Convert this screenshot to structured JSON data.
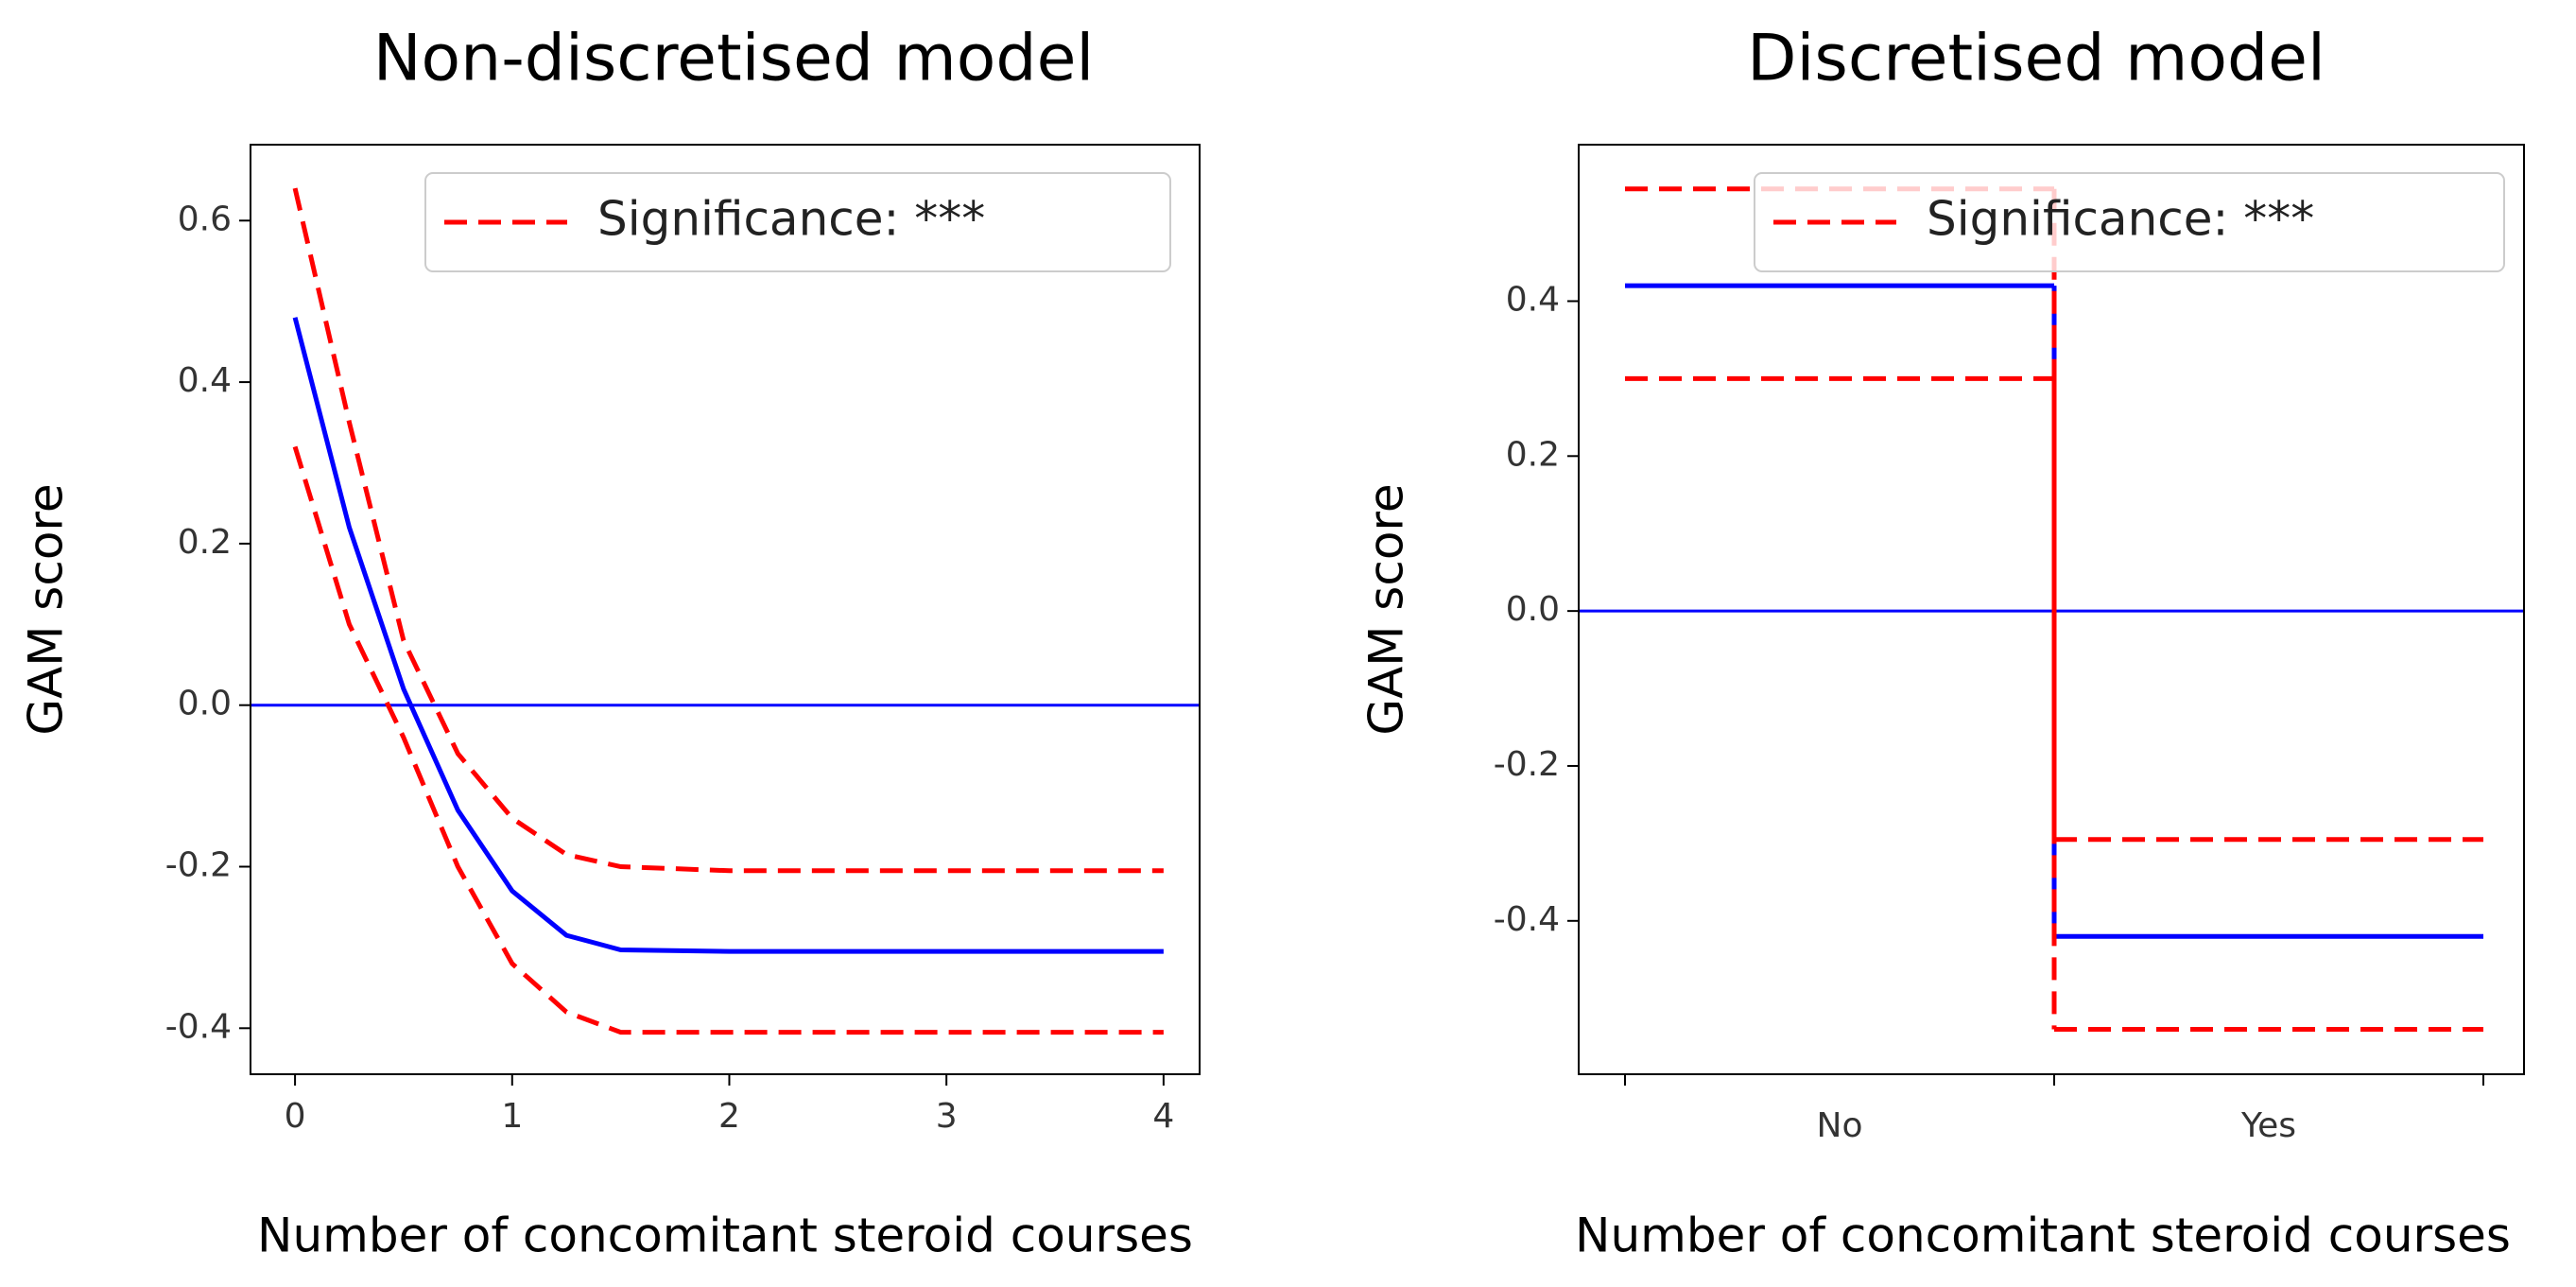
{
  "chart_data": [
    {
      "type": "line",
      "title": "Non-discretised model",
      "x_label": "Number of concomitant steroid courses",
      "y_label": "GAM score",
      "x": [
        0,
        0.25,
        0.5,
        0.75,
        1,
        1.25,
        1.5,
        2,
        3,
        4
      ],
      "series": [
        {
          "color": "#0000ff",
          "values": [
            0.48,
            0.22,
            0.02,
            -0.13,
            -0.23,
            -0.285,
            -0.303,
            -0.305,
            -0.305,
            -0.305
          ]
        },
        {
          "name": "Significance: ***",
          "color": "#ff0000",
          "dashed": true,
          "values": [
            0.64,
            0.35,
            0.08,
            -0.06,
            -0.14,
            -0.185,
            -0.2,
            -0.205,
            -0.205,
            -0.205
          ]
        },
        {
          "color": "#ff0000",
          "dashed": true,
          "values": [
            0.32,
            0.1,
            -0.04,
            -0.2,
            -0.32,
            -0.38,
            -0.405,
            -0.405,
            -0.405,
            -0.405
          ]
        }
      ],
      "reference_line": 0,
      "reference_color": "#0000ff",
      "xlim": [
        -0.205,
        4.166
      ],
      "xticks": [
        0,
        1,
        2,
        3,
        4
      ],
      "ylim": [
        -0.457,
        0.694
      ],
      "yticks": [
        -0.4,
        -0.2,
        {
          "value": 0,
          "label": "0.0"
        },
        0.2,
        0.4,
        0.6
      ],
      "legend": "upper right"
    },
    {
      "type": "step",
      "title": "Discretised model",
      "x_label": "Number of concomitant steroid courses",
      "y_label": "GAM score",
      "categories": [
        "No",
        "Yes"
      ],
      "series": [
        {
          "color": "#0000ff",
          "values": [
            0.42,
            -0.42
          ]
        },
        {
          "name": "Significance: ***",
          "color": "#ff0000",
          "dashed": true,
          "values": [
            0.545,
            -0.295
          ]
        },
        {
          "color": "#ff0000",
          "dashed": true,
          "values": [
            0.3,
            -0.54
          ]
        }
      ],
      "reference_line": 0,
      "reference_color": "#0000ff",
      "ylim": [
        -0.598,
        0.602
      ],
      "yticks": [
        -0.4,
        -0.2,
        {
          "value": 0,
          "label": "0.0"
        },
        0.2,
        0.4
      ],
      "legend": "upper right"
    }
  ]
}
